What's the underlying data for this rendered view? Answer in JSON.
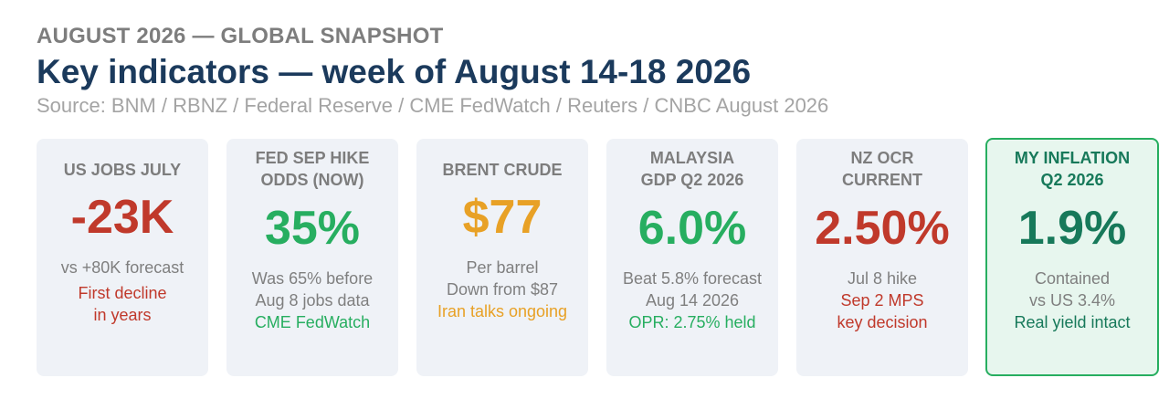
{
  "header": {
    "kicker": "AUGUST 2026 — GLOBAL SNAPSHOT",
    "title": "Key indicators — week of August 14-18 2026",
    "source": "Source: BNM / RBNZ / Federal Reserve / CME FedWatch / Reuters / CNBC August 2026"
  },
  "colors": {
    "title": "#1b3a5c",
    "red": "#c0392b",
    "green": "#27ae60",
    "orange": "#e8a126",
    "teal": "#17795a",
    "card_bg": "#eff2f7",
    "highlight_bg": "#e7f6ee"
  },
  "cards": [
    {
      "title": [
        "US JOBS JULY"
      ],
      "value": "-23K",
      "notes": [
        "vs +80K forecast",
        "First decline",
        "in years"
      ]
    },
    {
      "title": [
        "FED SEP HIKE",
        "ODDS (NOW)"
      ],
      "value": "35%",
      "notes": [
        "Was 65% before",
        "Aug 8 jobs data",
        "CME FedWatch"
      ]
    },
    {
      "title": [
        "BRENT CRUDE"
      ],
      "value": "$77",
      "notes": [
        "Per barrel",
        "Down from $87",
        "Iran talks ongoing"
      ]
    },
    {
      "title": [
        "MALAYSIA",
        "GDP Q2 2026"
      ],
      "value": "6.0%",
      "notes": [
        "Beat 5.8% forecast",
        "Aug 14 2026",
        "OPR: 2.75% held"
      ]
    },
    {
      "title": [
        "NZ OCR",
        "CURRENT"
      ],
      "value": "2.50%",
      "notes": [
        "Jul 8 hike",
        "Sep 2 MPS",
        "key decision"
      ]
    },
    {
      "title": [
        "MY INFLATION",
        "Q2 2026"
      ],
      "value": "1.9%",
      "notes": [
        "Contained",
        "vs US 3.4%",
        "Real yield intact"
      ]
    }
  ]
}
